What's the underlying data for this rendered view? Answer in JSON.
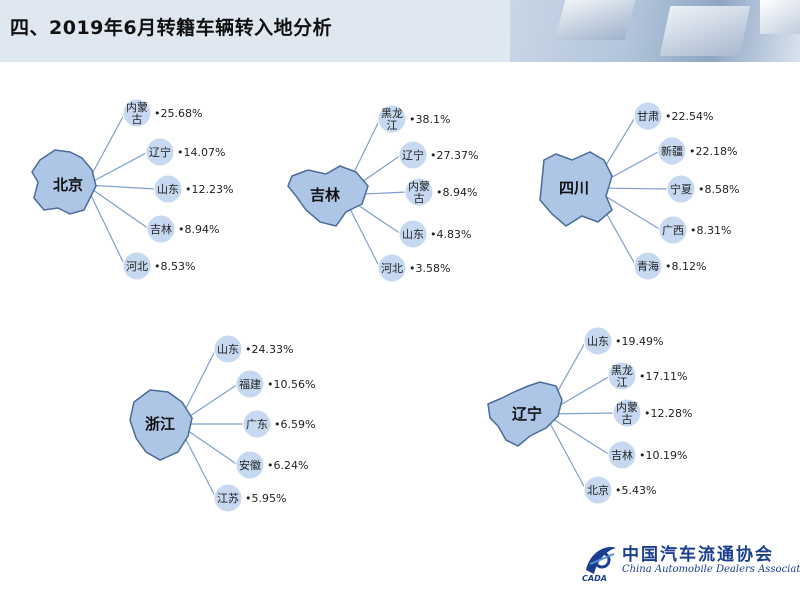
{
  "title": "四、2019年6月转籍车辆转入地分析",
  "colors": {
    "node_fill": "#c6d9f1",
    "line": "#7f9fcf",
    "map_fill": "#aec6e6",
    "map_stroke": "#4a6b9a",
    "logo": "#1a3f8f"
  },
  "groups": [
    {
      "hub": "北京",
      "targets": [
        {
          "label": "内蒙\n古",
          "pct": "•25.68%"
        },
        {
          "label": "辽宁",
          "pct": "•14.07%"
        },
        {
          "label": "山东",
          "pct": "•12.23%"
        },
        {
          "label": "吉林",
          "pct": "•8.94%"
        },
        {
          "label": "河北",
          "pct": "•8.53%"
        }
      ]
    },
    {
      "hub": "吉林",
      "targets": [
        {
          "label": "黑龙\n江",
          "pct": "•38.1%"
        },
        {
          "label": "辽宁",
          "pct": "•27.37%"
        },
        {
          "label": "内蒙\n古",
          "pct": "•8.94%"
        },
        {
          "label": "山东",
          "pct": "•4.83%"
        },
        {
          "label": "河北",
          "pct": "•3.58%"
        }
      ]
    },
    {
      "hub": "四川",
      "targets": [
        {
          "label": "甘肃",
          "pct": "•22.54%"
        },
        {
          "label": "新疆",
          "pct": "•22.18%"
        },
        {
          "label": "宁夏",
          "pct": "•8.58%"
        },
        {
          "label": "广西",
          "pct": "•8.31%"
        },
        {
          "label": "青海",
          "pct": "•8.12%"
        }
      ]
    },
    {
      "hub": "浙江",
      "targets": [
        {
          "label": "山东",
          "pct": "•24.33%"
        },
        {
          "label": "福建",
          "pct": "•10.56%"
        },
        {
          "label": "广东",
          "pct": "•6.59%"
        },
        {
          "label": "安徽",
          "pct": "•6.24%"
        },
        {
          "label": "江苏",
          "pct": "•5.95%"
        }
      ]
    },
    {
      "hub": "辽宁",
      "targets": [
        {
          "label": "山东",
          "pct": "•19.49%"
        },
        {
          "label": "黑龙\n江",
          "pct": "•17.11%"
        },
        {
          "label": "内蒙\n古",
          "pct": "•12.28%"
        },
        {
          "label": "吉林",
          "pct": "•10.19%"
        },
        {
          "label": "北京",
          "pct": "•5.43%"
        }
      ]
    }
  ],
  "logo": {
    "cn": "中国汽车流通协会",
    "en": "China Automobile Dealers Association",
    "abbr": "CADA"
  }
}
